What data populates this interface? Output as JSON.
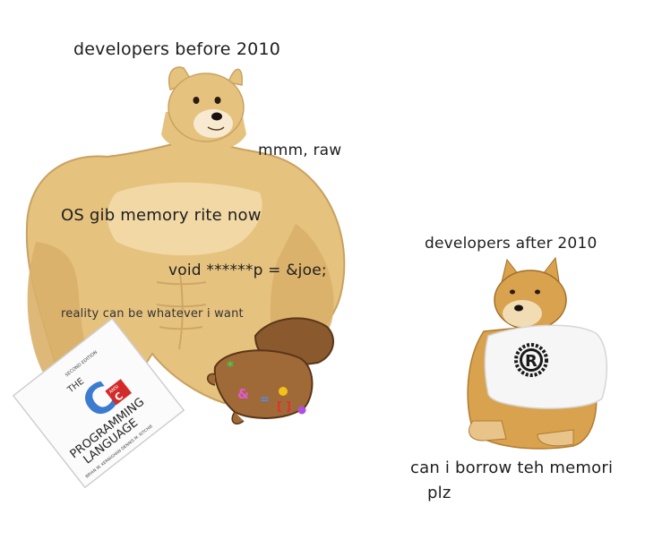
{
  "captions": {
    "left_title": "developers before 2010",
    "quote_raw": "mmm, raw",
    "quote_os": "OS gib memory rite now",
    "quote_void": "void ******p = &joe;",
    "quote_reality": "reality can be whatever i want",
    "right_title": "developers after 2010",
    "right_quote_line1": "can i borrow teh memori",
    "right_quote_line2": "plz"
  },
  "book": {
    "edition": "SECOND EDITION",
    "the": "THE",
    "letter": "C",
    "ansi": "ANSI",
    "title_line1": "PROGRAMMING",
    "title_line2": "LANGUAGE",
    "authors": "BRIAN W. KERNIGHAN  DENNIS M. RITCHIE"
  },
  "gauntlet": {
    "stones": [
      "*",
      "&",
      "=",
      "[",
      "]"
    ]
  },
  "shirt": {
    "logo_letter": "R"
  },
  "colors": {
    "fur": "#e6c27f",
    "fur_dark": "#c9a160",
    "fur_light": "#f4dfb2",
    "shiba": "#d9a24e",
    "gauntlet": "#8a5a2e",
    "book_blue": "#3b7bd0",
    "book_red": "#d32b2b"
  }
}
